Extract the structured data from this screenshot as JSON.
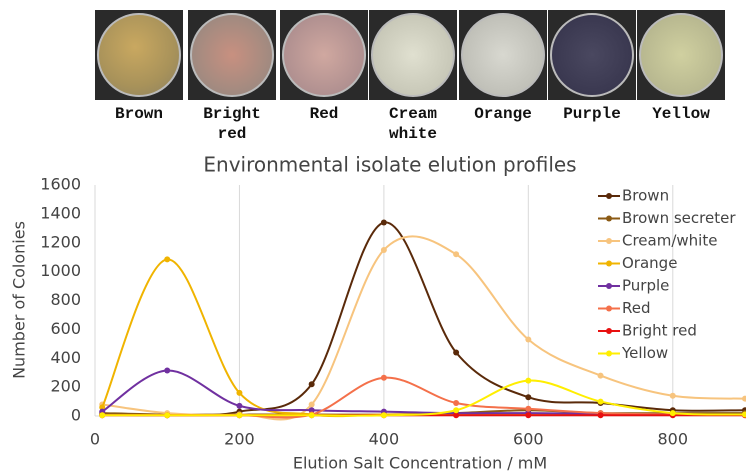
{
  "plates": [
    {
      "label": "Brown"
    },
    {
      "label": "Bright red"
    },
    {
      "label": "Red"
    },
    {
      "label": "Cream white"
    },
    {
      "label": "Orange"
    },
    {
      "label": "Purple"
    },
    {
      "label": "Yellow"
    }
  ],
  "chart_data": {
    "type": "line",
    "title": "Environmental isolate elution profiles",
    "x_label": "Elution Salt Concentration / mM",
    "y_label": "Number of Colonies",
    "x": [
      10,
      100,
      200,
      300,
      400,
      500,
      600,
      700,
      800,
      900
    ],
    "series": [
      {
        "name": "Brown",
        "color": "#5a2a0a",
        "values": [
          10,
          5,
          30,
          220,
          1340,
          440,
          130,
          90,
          40,
          40
        ]
      },
      {
        "name": "Brown secreter",
        "color": "#8b5a14",
        "values": [
          20,
          10,
          10,
          10,
          10,
          20,
          40,
          20,
          20,
          20
        ]
      },
      {
        "name": "Cream/white",
        "color": "#f7c47e",
        "values": [
          80,
          20,
          10,
          80,
          1150,
          1120,
          530,
          280,
          140,
          120
        ]
      },
      {
        "name": "Orange",
        "color": "#f0b400",
        "values": [
          60,
          1085,
          160,
          10,
          10,
          10,
          10,
          10,
          10,
          10
        ]
      },
      {
        "name": "Purple",
        "color": "#7030a0",
        "values": [
          30,
          315,
          70,
          40,
          30,
          20,
          20,
          15,
          10,
          10
        ]
      },
      {
        "name": "Red",
        "color": "#f4704a",
        "values": [
          5,
          5,
          5,
          10,
          265,
          90,
          50,
          20,
          10,
          10
        ]
      },
      {
        "name": "Bright red",
        "color": "#e81010",
        "values": [
          5,
          5,
          5,
          5,
          5,
          5,
          5,
          5,
          5,
          5
        ]
      },
      {
        "name": "Yellow",
        "color": "#ffee00",
        "values": [
          5,
          5,
          5,
          5,
          5,
          40,
          245,
          100,
          20,
          10
        ]
      }
    ],
    "xlim": [
      0,
      900
    ],
    "xticks": [
      0,
      200,
      400,
      600,
      800
    ],
    "ylim": [
      0,
      1600
    ],
    "yticks": [
      0,
      200,
      400,
      600,
      800,
      1000,
      1200,
      1400,
      1600
    ],
    "grid": "x",
    "legend": "upper right"
  }
}
